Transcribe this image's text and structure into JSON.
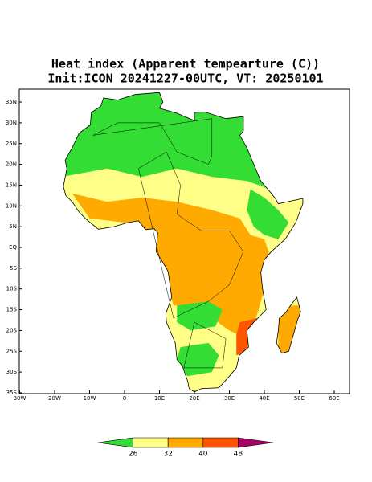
{
  "map": {
    "title": "Heat index (Apparent tempearture (C))",
    "subtitle": "Init:ICON 20241227-00UTC, VT: 20250101",
    "lat_ticks": [
      {
        "value": 35,
        "label": "35N"
      },
      {
        "value": 30,
        "label": "30N"
      },
      {
        "value": 25,
        "label": "25N"
      },
      {
        "value": 20,
        "label": "20N"
      },
      {
        "value": 15,
        "label": "15N"
      },
      {
        "value": 10,
        "label": "10N"
      },
      {
        "value": 5,
        "label": "5N"
      },
      {
        "value": 0,
        "label": "EQ"
      },
      {
        "value": -5,
        "label": "5S"
      },
      {
        "value": -10,
        "label": "10S"
      },
      {
        "value": -15,
        "label": "15S"
      },
      {
        "value": -20,
        "label": "20S"
      },
      {
        "value": -25,
        "label": "25S"
      },
      {
        "value": -30,
        "label": "30S"
      },
      {
        "value": -35,
        "label": "35S"
      }
    ],
    "lon_ticks": [
      {
        "value": -30,
        "label": "30W"
      },
      {
        "value": -20,
        "label": "20W"
      },
      {
        "value": -10,
        "label": "10W"
      },
      0,
      {
        "value": 10,
        "label": "10E"
      },
      {
        "value": 20,
        "label": "20E"
      },
      {
        "value": 30,
        "label": "30E"
      },
      {
        "value": 40,
        "label": "40E"
      },
      {
        "value": 50,
        "label": "50E"
      },
      {
        "value": 60,
        "label": "60E"
      }
    ]
  },
  "colorbar": {
    "ticks": [
      26,
      32,
      40,
      48
    ],
    "colors": [
      "#33dd33",
      "#ffff88",
      "#ffaa00",
      "#ff5500",
      "#aa0066"
    ]
  }
}
